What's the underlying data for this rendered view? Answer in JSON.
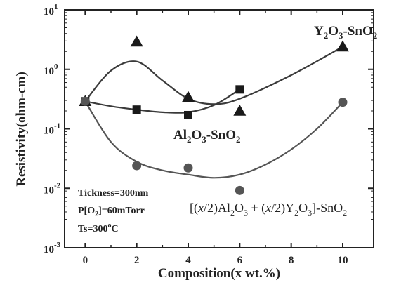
{
  "chart_data": {
    "type": "scatter",
    "xlabel": "Composition(x wt.%)",
    "ylabel": "Resistivity(ohm-cm)",
    "x_ticks": [
      0,
      2,
      4,
      6,
      8,
      10
    ],
    "y_ticks": [
      {
        "value": 0.001,
        "base": "10",
        "exp": "-3"
      },
      {
        "value": 0.01,
        "base": "10",
        "exp": "-2"
      },
      {
        "value": 0.1,
        "base": "10",
        "exp": "-1"
      },
      {
        "value": 1,
        "base": "10",
        "exp": "0"
      },
      {
        "value": 10,
        "base": "10",
        "exp": "1"
      }
    ],
    "xlim": [
      -0.8,
      11.2
    ],
    "ylim": [
      0.001,
      10
    ],
    "y_scale": "log",
    "grid": false,
    "series": [
      {
        "name": "Y2O3-SnO2",
        "marker": "triangle",
        "x": [
          0,
          2,
          4,
          6,
          10
        ],
        "y": [
          0.29,
          2.9,
          0.34,
          0.2,
          2.4
        ],
        "curve_x": [
          0,
          1,
          2,
          3,
          4,
          5,
          6,
          8,
          10
        ],
        "curve_y": [
          0.29,
          0.95,
          1.35,
          0.65,
          0.32,
          0.26,
          0.32,
          0.8,
          2.4
        ]
      },
      {
        "name": "Al2O3-SnO2",
        "marker": "square",
        "x": [
          0,
          2,
          4,
          6
        ],
        "y": [
          0.29,
          0.21,
          0.17,
          0.46
        ],
        "curve_x": [
          0,
          1,
          2,
          3,
          4,
          5,
          6
        ],
        "curve_y": [
          0.29,
          0.24,
          0.21,
          0.19,
          0.19,
          0.25,
          0.46
        ]
      },
      {
        "name": "[(x/2)Al2O3+(x/2)Y2O3]-SnO2",
        "marker": "circle",
        "x": [
          0,
          2,
          4,
          6,
          10
        ],
        "y": [
          0.29,
          0.024,
          0.022,
          0.0092,
          0.28
        ],
        "curve_x": [
          0,
          1,
          2,
          3,
          4,
          5,
          6,
          7,
          8,
          9,
          10
        ],
        "curve_y": [
          0.29,
          0.06,
          0.028,
          0.02,
          0.017,
          0.015,
          0.017,
          0.025,
          0.045,
          0.1,
          0.28
        ]
      }
    ],
    "annotations": {
      "y2o3": {
        "p1": "Y",
        "s1": "2",
        "p2": "O",
        "s2": "3",
        "p3": "-SnO",
        "s3": "2"
      },
      "al2o3": {
        "p1": "Al",
        "s1": "2",
        "p2": "O",
        "s2": "3",
        "p3": "-SnO",
        "s3": "2"
      },
      "mixed": {
        "open": "[(",
        "x1": "x",
        "half1": "/2)Al",
        "s1": "2",
        "o1": "O",
        "s2": "3",
        "plus": " + (",
        "x2": "x",
        "half2": "/2)Y",
        "s3": "2",
        "o2": "O",
        "s4": "3",
        "close": "]-SnO",
        "s5": "2"
      },
      "conditions": {
        "thickness": "Tickness=300nm",
        "pressure_pre": "P[O",
        "pressure_sub": "2",
        "pressure_post": "]=60mTorr",
        "ts_pre": "Ts=300",
        "ts_sup": "o",
        "ts_post": "C"
      }
    }
  }
}
